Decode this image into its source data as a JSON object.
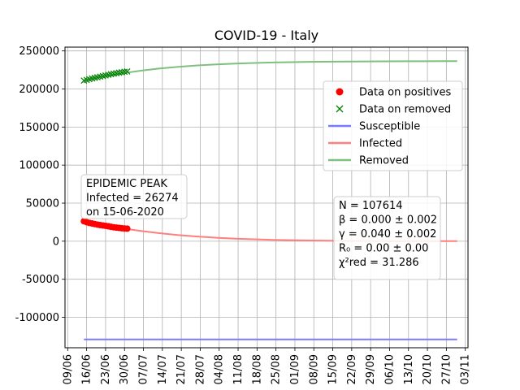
{
  "chart_data": {
    "type": "line",
    "title": "COVID-19 - Italy",
    "xlabel": "",
    "ylabel": "",
    "x_is_date": true,
    "xlim": [
      "2020-06-08",
      "2020-11-04"
    ],
    "ylim": [
      -140000,
      255000
    ],
    "y_ticks": [
      250000,
      200000,
      150000,
      100000,
      50000,
      0,
      -50000,
      -100000
    ],
    "x_ticks": [
      "2020-06-09",
      "2020-06-16",
      "2020-06-23",
      "2020-06-30",
      "2020-07-07",
      "2020-07-14",
      "2020-07-21",
      "2020-07-28",
      "2020-08-04",
      "2020-08-11",
      "2020-08-18",
      "2020-08-25",
      "2020-09-01",
      "2020-09-08",
      "2020-09-15",
      "2020-09-22",
      "2020-09-29",
      "2020-10-06",
      "2020-10-13",
      "2020-10-20",
      "2020-10-27",
      "2020-11-03"
    ],
    "x_tick_labels": [
      "09/06",
      "16/06",
      "23/06",
      "30/06",
      "07/07",
      "14/07",
      "21/07",
      "28/07",
      "04/08",
      "11/08",
      "18/08",
      "25/08",
      "01/09",
      "08/09",
      "15/09",
      "22/09",
      "29/09",
      "06/10",
      "13/10",
      "20/10",
      "27/10",
      "03/11"
    ],
    "grid": true,
    "legend_position": "right",
    "legend": [
      {
        "label": "Data on positives",
        "marker": "dot",
        "color": "#ff0000"
      },
      {
        "label": "Data on removed",
        "marker": "x",
        "color": "#008000"
      },
      {
        "label": "Susceptible",
        "line": true,
        "color": "#7a7aff"
      },
      {
        "label": "Infected",
        "line": true,
        "color": "#ff7f7f"
      },
      {
        "label": "Removed",
        "line": true,
        "color": "#7fbf7f"
      }
    ],
    "series": [
      {
        "name": "Data on positives",
        "kind": "scatter",
        "color": "#ff0000",
        "points": [
          [
            "2020-06-15",
            26274
          ],
          [
            "2020-06-16",
            25000
          ],
          [
            "2020-06-17",
            24000
          ],
          [
            "2020-06-18",
            23300
          ],
          [
            "2020-06-19",
            22500
          ],
          [
            "2020-06-20",
            21800
          ],
          [
            "2020-06-21",
            21200
          ],
          [
            "2020-06-22",
            20700
          ],
          [
            "2020-06-23",
            20200
          ],
          [
            "2020-06-24",
            19600
          ],
          [
            "2020-06-25",
            18900
          ],
          [
            "2020-06-26",
            18300
          ],
          [
            "2020-06-27",
            17800
          ],
          [
            "2020-06-28",
            17400
          ],
          [
            "2020-06-29",
            17000
          ],
          [
            "2020-06-30",
            16700
          ],
          [
            "2020-07-01",
            16500
          ]
        ]
      },
      {
        "name": "Data on removed",
        "kind": "scatter",
        "color": "#008000",
        "points": [
          [
            "2020-06-15",
            211000
          ],
          [
            "2020-06-16",
            211900
          ],
          [
            "2020-06-17",
            212900
          ],
          [
            "2020-06-18",
            213800
          ],
          [
            "2020-06-19",
            214600
          ],
          [
            "2020-06-20",
            215400
          ],
          [
            "2020-06-21",
            216200
          ],
          [
            "2020-06-22",
            217000
          ],
          [
            "2020-06-23",
            217800
          ],
          [
            "2020-06-24",
            218600
          ],
          [
            "2020-06-25",
            219400
          ],
          [
            "2020-06-26",
            220100
          ],
          [
            "2020-06-27",
            220800
          ],
          [
            "2020-06-28",
            221400
          ],
          [
            "2020-06-29",
            222000
          ],
          [
            "2020-06-30",
            222600
          ],
          [
            "2020-07-01",
            223000
          ]
        ]
      },
      {
        "name": "Susceptible",
        "kind": "line",
        "color": "#7a7aff",
        "points": [
          [
            "2020-06-15",
            -129000
          ],
          [
            "2020-10-31",
            -129000
          ]
        ]
      },
      {
        "name": "Infected",
        "kind": "line",
        "color": "#ff7f7f",
        "points": [
          [
            "2020-06-15",
            26274
          ],
          [
            "2020-06-22",
            21000
          ],
          [
            "2020-06-29",
            17000
          ],
          [
            "2020-07-06",
            13500
          ],
          [
            "2020-07-13",
            10500
          ],
          [
            "2020-07-20",
            8000
          ],
          [
            "2020-07-27",
            6100
          ],
          [
            "2020-08-03",
            4600
          ],
          [
            "2020-08-10",
            3400
          ],
          [
            "2020-08-17",
            2500
          ],
          [
            "2020-08-24",
            1800
          ],
          [
            "2020-08-31",
            1300
          ],
          [
            "2020-09-07",
            900
          ],
          [
            "2020-09-14",
            600
          ],
          [
            "2020-09-21",
            400
          ],
          [
            "2020-09-28",
            250
          ],
          [
            "2020-10-05",
            150
          ],
          [
            "2020-10-12",
            100
          ],
          [
            "2020-10-19",
            60
          ],
          [
            "2020-10-26",
            30
          ],
          [
            "2020-10-31",
            20
          ]
        ]
      },
      {
        "name": "Removed",
        "kind": "line",
        "color": "#7fbf7f",
        "points": [
          [
            "2020-06-15",
            211000
          ],
          [
            "2020-06-22",
            216500
          ],
          [
            "2020-06-29",
            220500
          ],
          [
            "2020-07-06",
            224000
          ],
          [
            "2020-07-13",
            227000
          ],
          [
            "2020-07-20",
            229200
          ],
          [
            "2020-07-27",
            231000
          ],
          [
            "2020-08-03",
            232400
          ],
          [
            "2020-08-10",
            233400
          ],
          [
            "2020-08-17",
            234200
          ],
          [
            "2020-08-24",
            234800
          ],
          [
            "2020-08-31",
            235300
          ],
          [
            "2020-09-07",
            235700
          ],
          [
            "2020-09-14",
            235900
          ],
          [
            "2020-09-21",
            236100
          ],
          [
            "2020-09-28",
            236250
          ],
          [
            "2020-10-05",
            236350
          ],
          [
            "2020-10-12",
            236420
          ],
          [
            "2020-10-19",
            236470
          ],
          [
            "2020-10-26",
            236500
          ],
          [
            "2020-10-31",
            236520
          ]
        ]
      }
    ],
    "annotations": [
      {
        "id": "peak",
        "lines": [
          "EPIDEMIC PEAK",
          "Infected = 26274",
          "on 15-06-2020"
        ]
      },
      {
        "id": "params",
        "lines": [
          "N = 107614",
          "β = 0.000 ± 0.002",
          "γ = 0.040 ± 0.002",
          "R₀ = 0.00 ± 0.00",
          "χ²red = 31.286"
        ]
      }
    ]
  }
}
